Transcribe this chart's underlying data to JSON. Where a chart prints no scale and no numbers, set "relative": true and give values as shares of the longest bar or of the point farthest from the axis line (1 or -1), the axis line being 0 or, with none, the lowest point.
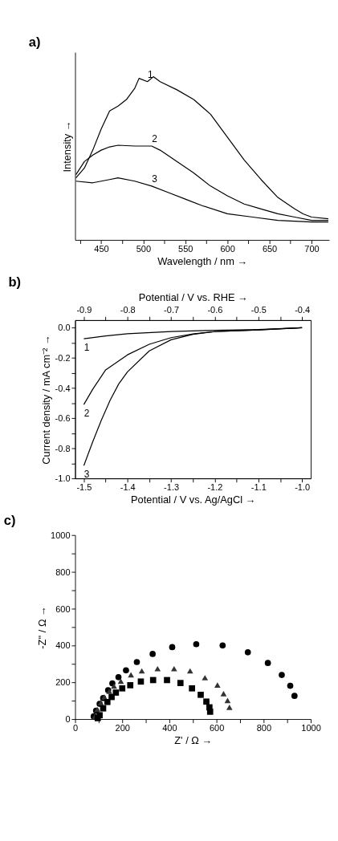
{
  "chart_data": [
    {
      "type": "line",
      "title": "a)",
      "xlabel": "Wavelength / nm →",
      "ylabel": "Intensity →",
      "relative": true,
      "tick_labels": "x",
      "grid": false,
      "xlim": [
        419,
        721
      ],
      "xticks": [
        {
          "value": 425,
          "label": null
        },
        450,
        {
          "value": 475,
          "label": null
        },
        500,
        {
          "value": 525,
          "label": null
        },
        550,
        {
          "value": 575,
          "label": null
        },
        600,
        {
          "value": 625,
          "label": null
        },
        650,
        {
          "value": 675,
          "label": null
        },
        700
      ],
      "series": [
        {
          "color": "#000000",
          "x": [
            420,
            430,
            440,
            450,
            460,
            470,
            480,
            490,
            495,
            505,
            512,
            520,
            540,
            560,
            580,
            600,
            620,
            640,
            660,
            680,
            690,
            700,
            720
          ],
          "values": [
            0.38,
            0.44,
            0.55,
            0.68,
            0.79,
            0.82,
            0.86,
            0.93,
            0.99,
            0.97,
            1.0,
            0.97,
            0.92,
            0.86,
            0.77,
            0.63,
            0.49,
            0.37,
            0.26,
            0.19,
            0.16,
            0.14,
            0.13
          ]
        },
        {
          "color": "#000000",
          "x": [
            420,
            430,
            440,
            450,
            460,
            470,
            490,
            510,
            520,
            540,
            560,
            580,
            600,
            620,
            640,
            660,
            680,
            700,
            720
          ],
          "values": [
            0.4,
            0.48,
            0.52,
            0.55,
            0.57,
            0.58,
            0.575,
            0.575,
            0.55,
            0.48,
            0.41,
            0.33,
            0.27,
            0.22,
            0.19,
            0.16,
            0.14,
            0.12,
            0.12
          ]
        },
        {
          "color": "#000000",
          "x": [
            420,
            440,
            460,
            470,
            490,
            510,
            530,
            550,
            570,
            600,
            630,
            660,
            700,
            720
          ],
          "values": [
            0.36,
            0.35,
            0.37,
            0.38,
            0.36,
            0.33,
            0.29,
            0.25,
            0.21,
            0.16,
            0.14,
            0.12,
            0.11,
            0.11
          ]
        }
      ],
      "annotations": [
        {
          "text": "1",
          "x": 505,
          "y": 0.97
        },
        {
          "text": "2",
          "x": 510,
          "y": 0.575
        },
        {
          "text": "3",
          "x": 510,
          "y": 0.33
        }
      ]
    },
    {
      "type": "line",
      "title": "b)",
      "xlabel": "Potential / V vs. Ag/AgCl →",
      "ylabel": "Current density / mA cm⁻² →",
      "x2label": "Potential / V vs. RHE →",
      "grid": false,
      "xlim": [
        -1.52,
        -0.98
      ],
      "xticks": [
        -1.5,
        {
          "value": -1.45,
          "label": null
        },
        -1.4,
        {
          "value": -1.35,
          "label": null
        },
        -1.3,
        {
          "value": -1.25,
          "label": null
        },
        -1.2,
        {
          "value": -1.15,
          "label": null
        },
        -1.1,
        {
          "value": -1.05,
          "label": null
        },
        {
          "value": -1.0,
          "label": "-1.0"
        }
      ],
      "x2lim": [
        -0.92,
        -0.38
      ],
      "x2ticks": [
        -0.9,
        {
          "value": -0.85,
          "label": null
        },
        -0.8,
        {
          "value": -0.75,
          "label": null
        },
        -0.7,
        {
          "value": -0.65,
          "label": null
        },
        -0.6,
        {
          "value": -0.55,
          "label": null
        },
        -0.5,
        {
          "value": -0.45,
          "label": null
        },
        -0.4
      ],
      "ylim": [
        -1.0,
        0.05
      ],
      "yticks": [
        {
          "value": -1.0,
          "label": "-1.0"
        },
        {
          "value": -0.9,
          "label": null
        },
        -0.8,
        {
          "value": -0.7,
          "label": null
        },
        -0.6,
        {
          "value": -0.5,
          "label": null
        },
        -0.4,
        {
          "value": -0.3,
          "label": null
        },
        -0.2,
        {
          "value": -0.1,
          "label": null
        },
        {
          "value": 0,
          "label": "0.0"
        }
      ],
      "series": [
        {
          "color": "#000000",
          "x": [
            -1.5,
            -1.45,
            -1.4,
            -1.3,
            -1.2,
            -1.1,
            -1.0
          ],
          "values": [
            -0.073,
            -0.055,
            -0.04,
            -0.025,
            -0.017,
            -0.012,
            0.0
          ]
        },
        {
          "color": "#000000",
          "x": [
            -1.5,
            -1.48,
            -1.45,
            -1.4,
            -1.35,
            -1.3,
            -1.25,
            -1.2,
            -1.1,
            -1.0
          ],
          "values": [
            -0.51,
            -0.41,
            -0.28,
            -0.18,
            -0.11,
            -0.066,
            -0.041,
            -0.026,
            -0.015,
            0.0
          ]
        },
        {
          "color": "#000000",
          "x": [
            -1.5,
            -1.48,
            -1.46,
            -1.44,
            -1.42,
            -1.4,
            -1.35,
            -1.3,
            -1.25,
            -1.2,
            -1.1,
            -1.0
          ],
          "values": [
            -0.915,
            -0.76,
            -0.615,
            -0.483,
            -0.373,
            -0.293,
            -0.154,
            -0.08,
            -0.044,
            -0.026,
            -0.015,
            0.0
          ]
        }
      ],
      "annotations": [
        {
          "text": "1",
          "x": -1.5,
          "y": -0.073
        },
        {
          "text": "2",
          "x": -1.5,
          "y": -0.51
        },
        {
          "text": "3",
          "x": -1.5,
          "y": -0.915
        }
      ]
    },
    {
      "type": "scatter",
      "title": "c)",
      "xlabel": "Z' / Ω →",
      "ylabel": "-Z'' / Ω →",
      "grid": false,
      "xlim": [
        0,
        1000
      ],
      "xticks": [
        0,
        {
          "value": 100,
          "label": null
        },
        200,
        {
          "value": 300,
          "label": null
        },
        400,
        {
          "value": 500,
          "label": null
        },
        600,
        {
          "value": 700,
          "label": null
        },
        800,
        {
          "value": 900,
          "label": null
        },
        1000
      ],
      "ylim": [
        0,
        1000
      ],
      "yticks": [
        0,
        {
          "value": 100,
          "label": null
        },
        200,
        {
          "value": 300,
          "label": null
        },
        400,
        {
          "value": 500,
          "label": null
        },
        600,
        {
          "value": 700,
          "label": null
        },
        800,
        {
          "value": 900,
          "label": null
        },
        1000
      ],
      "series": [
        {
          "color": "#000000",
          "marker": "circle",
          "x": [
            79,
            89,
            104,
            119,
            140,
            158,
            184,
            216,
            262,
            329,
            412,
            514,
            626,
            733,
            818,
            877,
            913,
            931
          ],
          "values": [
            15,
            46,
            83,
            114,
            157,
            194,
            228,
            265,
            310,
            354,
            391,
            407,
            400,
            363,
            305,
            240,
            181,
            126
          ]
        },
        {
          "color": "#333333",
          "marker": "triangle",
          "x": [
            84,
            94,
            109,
            124,
            145,
            165,
            194,
            237,
            283,
            350,
            420,
            488,
            551,
            604,
            630,
            647,
            655
          ],
          "values": [
            15,
            52,
            89,
            120,
            151,
            179,
            206,
            241,
            262,
            274,
            274,
            262,
            225,
            185,
            138,
            101,
            64
          ]
        },
        {
          "color": "#000000",
          "marker": "square",
          "x": [
            96,
            104,
            119,
            137,
            155,
            173,
            200,
            234,
            279,
            331,
            390,
            447,
            496,
            533,
            557,
            570,
            573
          ],
          "values": [
            5,
            21,
            58,
            93,
            120,
            144,
            167,
            184,
            204,
            212,
            212,
            196,
            167,
            132,
            95,
            64,
            40
          ]
        }
      ]
    }
  ]
}
